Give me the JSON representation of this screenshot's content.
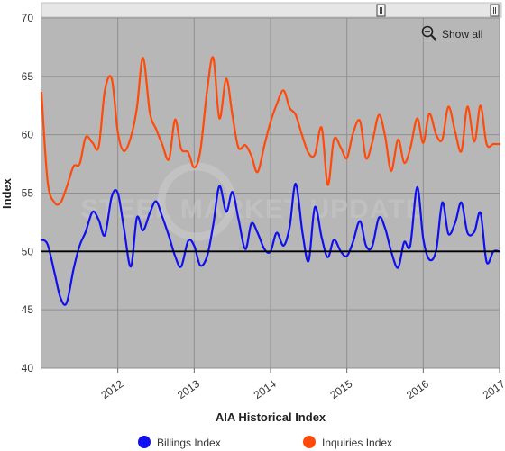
{
  "controls": {
    "show_all_label": "Show all",
    "zoom_icon": "zoom-out-icon",
    "scroll_handle_icon": "scroll-handle-icon"
  },
  "watermark": {
    "text": "STEEL MARKET UPDATE"
  },
  "colors": {
    "billings": "#1010ee",
    "inquiries": "#ff4a0a",
    "plot_bg": "#b7b7b7",
    "grid": "#8f8f8f",
    "reference_line": "#000000"
  },
  "chart_data": {
    "type": "line",
    "title": "",
    "xlabel": "AIA Historical Index",
    "ylabel": "Index",
    "ylim": [
      40,
      70
    ],
    "yticks": [
      40,
      45,
      50,
      55,
      60,
      65,
      70
    ],
    "xlim": [
      2011.0,
      2017.0
    ],
    "xticks": [
      {
        "value": 2012,
        "label": "2012"
      },
      {
        "value": 2013,
        "label": "2013"
      },
      {
        "value": 2014,
        "label": "2014"
      },
      {
        "value": 2015,
        "label": "2015"
      },
      {
        "value": 2016,
        "label": "2016"
      },
      {
        "value": 2017,
        "label": "2017"
      }
    ],
    "reference_line": 50,
    "grid": true,
    "legend_position": "bottom",
    "series": [
      {
        "name": "Billings Index",
        "color": "#1010ee",
        "x": [
          2011.0,
          2011.08,
          2011.17,
          2011.25,
          2011.33,
          2011.42,
          2011.5,
          2011.58,
          2011.67,
          2011.75,
          2011.83,
          2011.92,
          2012.0,
          2012.08,
          2012.17,
          2012.25,
          2012.33,
          2012.42,
          2012.5,
          2012.58,
          2012.67,
          2012.75,
          2012.83,
          2012.92,
          2013.0,
          2013.08,
          2013.17,
          2013.25,
          2013.33,
          2013.42,
          2013.5,
          2013.58,
          2013.67,
          2013.75,
          2013.83,
          2013.92,
          2014.0,
          2014.08,
          2014.17,
          2014.25,
          2014.33,
          2014.42,
          2014.5,
          2014.58,
          2014.67,
          2014.75,
          2014.83,
          2014.92,
          2015.0,
          2015.08,
          2015.17,
          2015.25,
          2015.33,
          2015.42,
          2015.5,
          2015.58,
          2015.67,
          2015.75,
          2015.83,
          2015.92,
          2016.0,
          2016.08,
          2016.17,
          2016.25,
          2016.33,
          2016.42,
          2016.5,
          2016.58,
          2016.67,
          2016.75,
          2016.83,
          2016.92,
          2017.0
        ],
        "values": [
          51.0,
          50.6,
          48.2,
          46.0,
          45.6,
          48.5,
          50.5,
          51.7,
          53.4,
          52.7,
          51.4,
          54.7,
          55.0,
          52.0,
          48.7,
          52.9,
          51.8,
          53.3,
          54.3,
          53.0,
          51.3,
          49.6,
          48.7,
          50.9,
          50.5,
          48.8,
          49.6,
          52.3,
          55.6,
          53.4,
          55.1,
          52.8,
          50.2,
          52.4,
          51.6,
          50.2,
          50.0,
          51.6,
          50.5,
          52.1,
          55.8,
          51.5,
          49.2,
          53.8,
          51.2,
          49.5,
          51.0,
          50.0,
          49.6,
          50.8,
          52.6,
          50.5,
          50.4,
          52.9,
          52.0,
          50.0,
          48.6,
          50.8,
          50.5,
          55.5,
          51.1,
          49.3,
          50.1,
          54.2,
          51.5,
          52.5,
          54.2,
          51.6,
          51.7,
          53.3,
          49.1,
          50.0,
          50.0
        ]
      },
      {
        "name": "Inquiries Index",
        "color": "#ff4a0a",
        "x": [
          2011.0,
          2011.08,
          2011.17,
          2011.25,
          2011.33,
          2011.42,
          2011.5,
          2011.58,
          2011.67,
          2011.75,
          2011.83,
          2011.92,
          2012.0,
          2012.08,
          2012.17,
          2012.25,
          2012.33,
          2012.42,
          2012.5,
          2012.58,
          2012.67,
          2012.75,
          2012.83,
          2012.92,
          2013.0,
          2013.08,
          2013.17,
          2013.25,
          2013.33,
          2013.42,
          2013.5,
          2013.58,
          2013.67,
          2013.75,
          2013.83,
          2013.92,
          2014.0,
          2014.08,
          2014.17,
          2014.25,
          2014.33,
          2014.42,
          2014.5,
          2014.58,
          2014.67,
          2014.75,
          2014.83,
          2014.92,
          2015.0,
          2015.08,
          2015.17,
          2015.25,
          2015.33,
          2015.42,
          2015.5,
          2015.58,
          2015.67,
          2015.75,
          2015.83,
          2015.92,
          2016.0,
          2016.08,
          2016.17,
          2016.25,
          2016.33,
          2016.42,
          2016.5,
          2016.58,
          2016.67,
          2016.75,
          2016.83,
          2016.92,
          2017.0
        ],
        "values": [
          63.6,
          56.0,
          54.2,
          54.2,
          55.5,
          57.3,
          57.5,
          59.8,
          59.3,
          59.0,
          63.8,
          64.8,
          60.2,
          58.6,
          59.8,
          62.3,
          66.6,
          61.9,
          60.5,
          59.2,
          57.9,
          61.3,
          58.8,
          58.5,
          57.2,
          58.6,
          63.8,
          66.6,
          61.4,
          64.8,
          61.7,
          58.9,
          59.1,
          58.2,
          56.8,
          59.1,
          61.1,
          62.6,
          63.8,
          62.3,
          61.7,
          59.8,
          58.4,
          58.3,
          60.6,
          55.7,
          59.6,
          58.9,
          58.0,
          60.1,
          61.2,
          58.0,
          59.3,
          61.7,
          59.9,
          56.9,
          59.6,
          57.6,
          58.8,
          61.4,
          59.3,
          61.8,
          60.0,
          59.6,
          62.4,
          60.2,
          58.6,
          62.4,
          59.4,
          62.5,
          59.2,
          59.2,
          59.2
        ]
      }
    ]
  }
}
